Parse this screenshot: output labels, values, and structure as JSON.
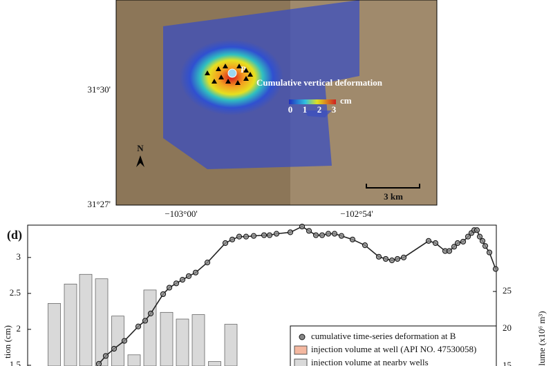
{
  "map": {
    "point_label": "B",
    "legend_title": "Cumulative vertical deformation",
    "legend_unit": "cm",
    "colorbar_ticks": [
      "0",
      "1",
      "2",
      "3"
    ],
    "north": "N",
    "scale_bar": "3 km",
    "lat_labels": [
      "31°30'",
      "31°27'"
    ],
    "lon_labels": [
      "−103°00'",
      "−102°54'"
    ]
  },
  "chart_data": {
    "type": "bar-line",
    "panel": "(d)",
    "y_label": "tion (cm)",
    "y2_label": "lume (x10⁶ m³)",
    "xlim": [
      0,
      678
    ],
    "ylim": [
      1.49,
      3.45
    ],
    "yticks": [
      1.5,
      2,
      2.5,
      3
    ],
    "y2lim": [
      15,
      33.9
    ],
    "y2ticks": [
      15,
      20,
      25
    ],
    "series": [
      {
        "name": "cumulative time-series deformation at B",
        "color": "#222222",
        "type": "line",
        "x": [
          103,
          113,
          125,
          140,
          160,
          170,
          178,
          196,
          205,
          215,
          224,
          233,
          243,
          260,
          286,
          296,
          306,
          316,
          327,
          342,
          350,
          360,
          380,
          397,
          407,
          417,
          426,
          435,
          444,
          454,
          470,
          488,
          508,
          518,
          527,
          535,
          544,
          580,
          590,
          604,
          610,
          617,
          622,
          630,
          637,
          642,
          646,
          650,
          654,
          658,
          662,
          668,
          677
        ],
        "values": [
          1.52,
          1.63,
          1.73,
          1.84,
          2.04,
          2.12,
          2.22,
          2.49,
          2.58,
          2.64,
          2.69,
          2.74,
          2.79,
          2.93,
          3.2,
          3.25,
          3.29,
          3.29,
          3.3,
          3.31,
          3.31,
          3.33,
          3.35,
          3.43,
          3.37,
          3.31,
          3.31,
          3.33,
          3.33,
          3.3,
          3.25,
          3.17,
          3.01,
          2.98,
          2.96,
          2.98,
          3.0,
          3.23,
          3.2,
          3.09,
          3.09,
          3.15,
          3.2,
          3.22,
          3.29,
          3.34,
          3.38,
          3.38,
          3.29,
          3.23,
          3.16,
          3.07,
          2.84
        ]
      },
      {
        "name": "injection volume at well (API NO. 47530058)",
        "color": "#f4b8a0",
        "type": "bar",
        "axis": "y2",
        "x": [],
        "values": []
      },
      {
        "name": "injection volume at nearby wells",
        "color": "#d9d9d9",
        "type": "bar",
        "axis": "y2",
        "x": [
          38.5,
          62,
          84,
          107,
          130.5,
          154,
          177,
          201,
          224,
          247,
          270.5,
          294
        ],
        "values": [
          23.4,
          26.0,
          27.3,
          26.7,
          21.7,
          16.5,
          25.2,
          22.2,
          21.3,
          21.9,
          15.6,
          20.6
        ]
      }
    ]
  }
}
